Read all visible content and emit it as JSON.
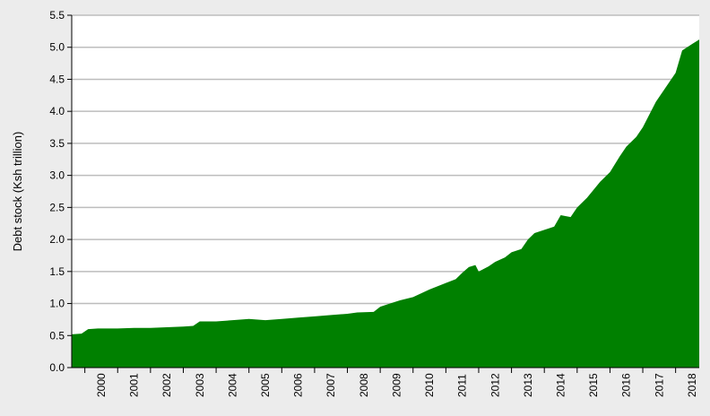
{
  "chart_data": {
    "type": "area",
    "title": "",
    "xlabel": "",
    "ylabel": "Debt stock (Ksh trillion)",
    "ylim": [
      0,
      5.5
    ],
    "xlim": [
      1999.6,
      2018.72
    ],
    "grid": true,
    "legend": "none",
    "colors": {
      "fill": "#008000",
      "plot_background": "#ffffff",
      "page_background": "#ececec",
      "grid": "#bdbdbd",
      "axis": "#000000"
    },
    "yticks": [
      "0.0",
      "0.5",
      "1.0",
      "1.5",
      "2.0",
      "2.5",
      "3.0",
      "3.5",
      "4.0",
      "4.5",
      "5.0",
      "5.5"
    ],
    "xticks": [
      "2000",
      "2001",
      "2002",
      "2003",
      "2004",
      "2005",
      "2006",
      "2007",
      "2008",
      "2009",
      "2010",
      "2011",
      "2012",
      "2013",
      "2014",
      "2015",
      "2016",
      "2017",
      "2018"
    ],
    "series": [
      {
        "x": [
          1999.6,
          1999.9,
          2000.1,
          2000.4,
          2001.0,
          2001.5,
          2002.0,
          2003.0,
          2003.3,
          2003.5,
          2004.0,
          2004.5,
          2005.0,
          2005.5,
          2006.0,
          2006.5,
          2007.0,
          2007.5,
          2008.0,
          2008.3,
          2008.8,
          2009.0,
          2009.3,
          2009.6,
          2010.0,
          2010.5,
          2011.0,
          2011.3,
          2011.5,
          2011.7,
          2011.9,
          2012.0,
          2012.3,
          2012.5,
          2012.8,
          2013.0,
          2013.3,
          2013.5,
          2013.7,
          2014.0,
          2014.3,
          2014.5,
          2014.8,
          2015.0,
          2015.3,
          2015.7,
          2016.0,
          2016.3,
          2016.5,
          2016.8,
          2017.0,
          2017.2,
          2017.4,
          2017.6,
          2017.8,
          2018.0,
          2018.2,
          2018.5,
          2018.72
        ],
        "values": [
          0.52,
          0.53,
          0.6,
          0.61,
          0.61,
          0.62,
          0.62,
          0.64,
          0.65,
          0.72,
          0.72,
          0.74,
          0.76,
          0.74,
          0.76,
          0.78,
          0.8,
          0.82,
          0.84,
          0.86,
          0.87,
          0.95,
          1.0,
          1.05,
          1.1,
          1.22,
          1.32,
          1.38,
          1.48,
          1.57,
          1.6,
          1.5,
          1.58,
          1.65,
          1.72,
          1.8,
          1.85,
          2.0,
          2.1,
          2.15,
          2.2,
          2.38,
          2.35,
          2.5,
          2.65,
          2.9,
          3.05,
          3.3,
          3.45,
          3.6,
          3.75,
          3.95,
          4.15,
          4.3,
          4.45,
          4.6,
          4.95,
          5.05,
          5.12
        ]
      }
    ]
  }
}
